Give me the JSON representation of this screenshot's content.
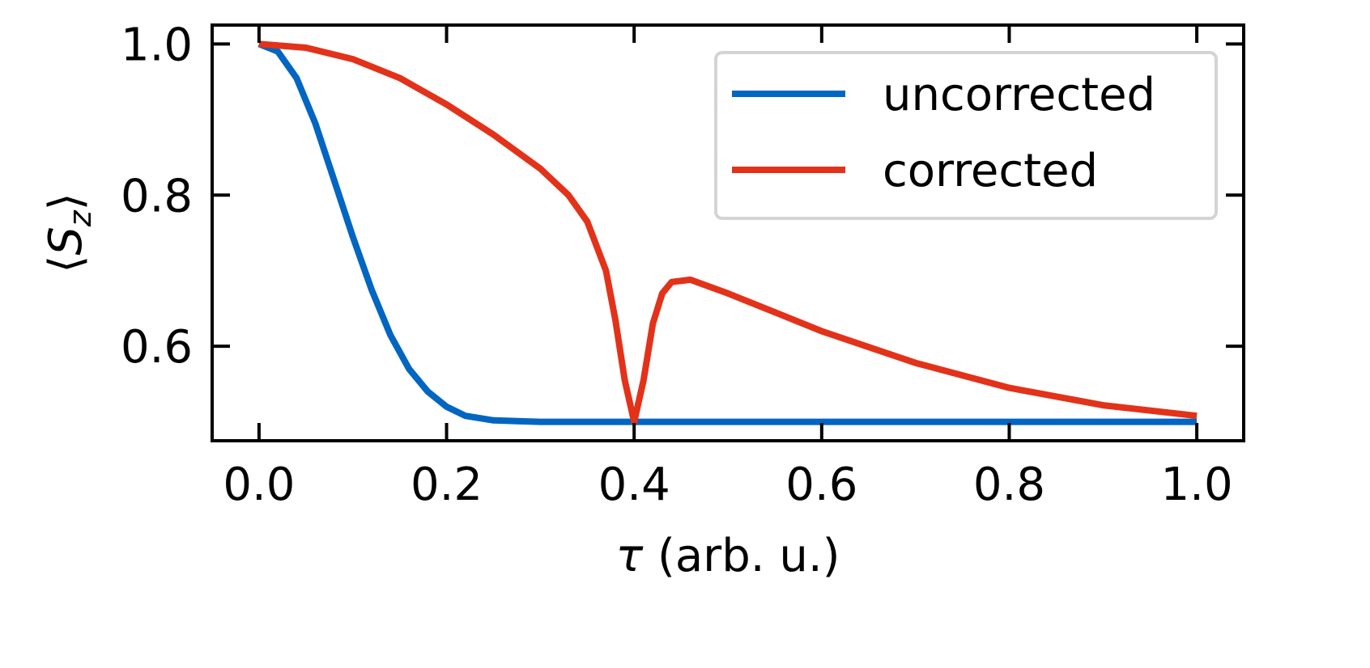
{
  "chart_data": {
    "type": "line",
    "xlabel": {
      "symbol": "τ",
      "rest": " (arb. u.)"
    },
    "ylabel": {
      "pre": "⟨",
      "symbol": "S",
      "subscript": "z",
      "post": "⟩"
    },
    "xlim": [
      -0.05,
      1.05
    ],
    "ylim": [
      0.475,
      1.025
    ],
    "xticks": [
      {
        "value": 0.0,
        "label": "0.0"
      },
      {
        "value": 0.2,
        "label": "0.2"
      },
      {
        "value": 0.4,
        "label": "0.4"
      },
      {
        "value": 0.6,
        "label": "0.6"
      },
      {
        "value": 0.8,
        "label": "0.8"
      },
      {
        "value": 1.0,
        "label": "1.0"
      }
    ],
    "yticks": [
      {
        "value": 0.6,
        "label": "0.6"
      },
      {
        "value": 0.8,
        "label": "0.8"
      },
      {
        "value": 1.0,
        "label": "1.0"
      }
    ],
    "grid": false,
    "legend_position": "top-right",
    "series": [
      {
        "name": "uncorrected",
        "color": "#0066c2",
        "x": [
          0.0,
          0.02,
          0.04,
          0.06,
          0.08,
          0.1,
          0.12,
          0.14,
          0.16,
          0.18,
          0.2,
          0.22,
          0.25,
          0.3,
          0.4,
          0.6,
          0.8,
          1.0
        ],
        "y": [
          1.0,
          0.99,
          0.955,
          0.895,
          0.82,
          0.745,
          0.675,
          0.615,
          0.57,
          0.54,
          0.52,
          0.508,
          0.502,
          0.5,
          0.5,
          0.5,
          0.5,
          0.5
        ]
      },
      {
        "name": "corrected",
        "color": "#e3321a",
        "x": [
          0.0,
          0.05,
          0.1,
          0.15,
          0.2,
          0.25,
          0.3,
          0.33,
          0.35,
          0.37,
          0.38,
          0.39,
          0.4,
          0.41,
          0.42,
          0.43,
          0.44,
          0.46,
          0.5,
          0.55,
          0.6,
          0.7,
          0.8,
          0.9,
          1.0
        ],
        "y": [
          1.0,
          0.995,
          0.98,
          0.955,
          0.92,
          0.88,
          0.835,
          0.8,
          0.765,
          0.7,
          0.635,
          0.555,
          0.5,
          0.555,
          0.63,
          0.67,
          0.685,
          0.688,
          0.67,
          0.645,
          0.62,
          0.578,
          0.545,
          0.522,
          0.508
        ]
      }
    ]
  }
}
